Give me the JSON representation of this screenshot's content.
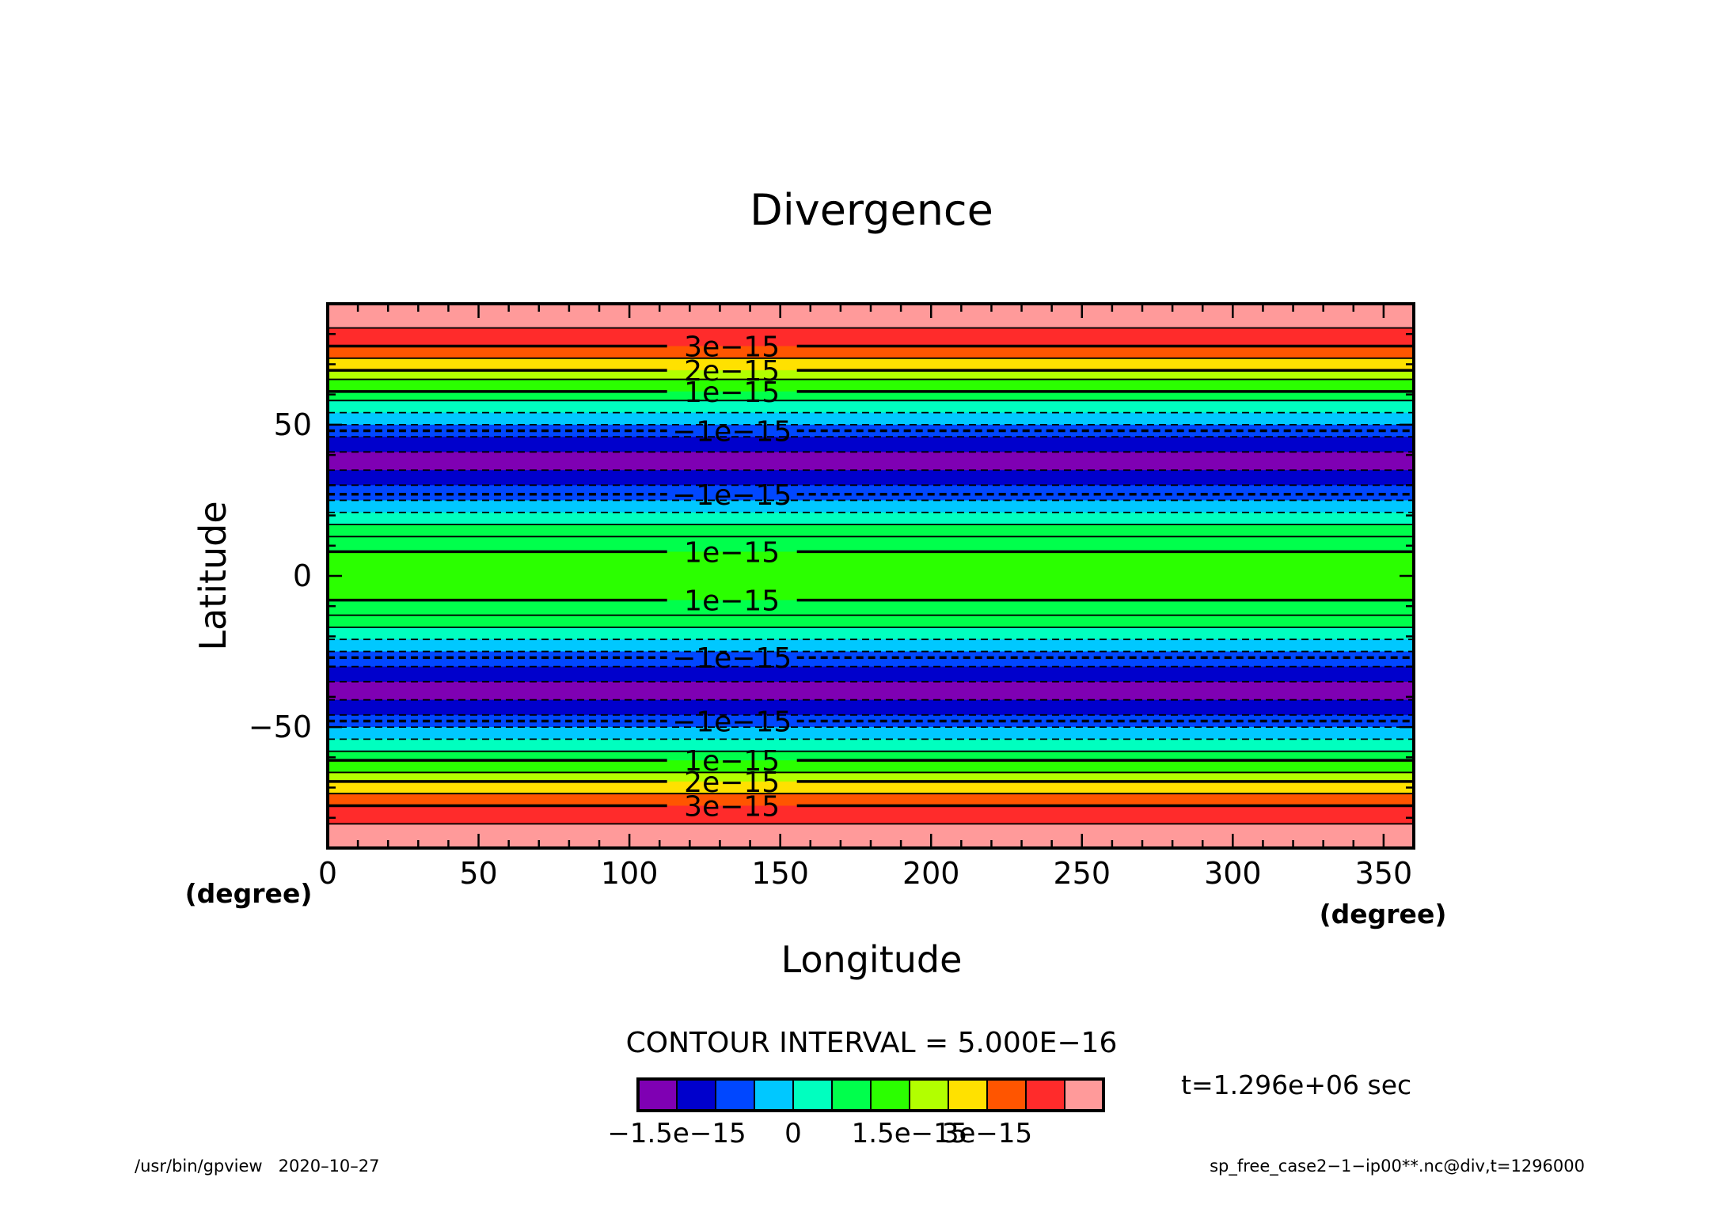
{
  "chart_data": {
    "type": "heatmap",
    "title": "Divergence",
    "xlabel": "Longitude",
    "ylabel": "Latitude",
    "x_unit_label": "(degree)",
    "y_unit_label": "(degree)",
    "xlim": [
      0,
      360
    ],
    "ylim": [
      -90,
      90
    ],
    "x_ticks": [
      0,
      50,
      100,
      150,
      200,
      250,
      300,
      350
    ],
    "y_ticks": [
      -50,
      0,
      50
    ],
    "x_tick_labels": [
      "0",
      "50",
      "100",
      "150",
      "200",
      "250",
      "300",
      "350"
    ],
    "y_tick_labels": [
      "−50",
      "0",
      "50"
    ],
    "contour_interval_text": "CONTOUR INTERVAL = 5.000E−16",
    "time_text": "t=1.296e+06 sec",
    "colorbar": {
      "colors": [
        "#7f00b3",
        "#0000cc",
        "#0047ff",
        "#00c8ff",
        "#00ffbf",
        "#00ff4c",
        "#2bff00",
        "#b2ff00",
        "#ffe100",
        "#ff5500",
        "#ff2b2b",
        "#ff9a9a"
      ],
      "tick_labels": [
        "−1.5e−15",
        "0",
        "1.5e−15",
        "3e−15"
      ]
    },
    "bands": [
      {
        "lat_from": 82,
        "lat_to": 90,
        "color": "#ff9a9a"
      },
      {
        "lat_from": 76,
        "lat_to": 82,
        "color": "#ff2b2b"
      },
      {
        "lat_from": 72,
        "lat_to": 76,
        "color": "#ff5500"
      },
      {
        "lat_from": 68,
        "lat_to": 72,
        "color": "#ffe100"
      },
      {
        "lat_from": 65,
        "lat_to": 68,
        "color": "#b2ff00"
      },
      {
        "lat_from": 61,
        "lat_to": 65,
        "color": "#2bff00"
      },
      {
        "lat_from": 58,
        "lat_to": 61,
        "color": "#00ff4c"
      },
      {
        "lat_from": 54,
        "lat_to": 58,
        "color": "#00ffbf"
      },
      {
        "lat_from": 50,
        "lat_to": 54,
        "color": "#00c8ff"
      },
      {
        "lat_from": 46,
        "lat_to": 50,
        "color": "#0047ff"
      },
      {
        "lat_from": 41,
        "lat_to": 46,
        "color": "#0000cc"
      },
      {
        "lat_from": 35,
        "lat_to": 41,
        "color": "#7f00b3"
      },
      {
        "lat_from": 30,
        "lat_to": 35,
        "color": "#0000cc"
      },
      {
        "lat_from": 25,
        "lat_to": 30,
        "color": "#0047ff"
      },
      {
        "lat_from": 21,
        "lat_to": 25,
        "color": "#00c8ff"
      },
      {
        "lat_from": 17,
        "lat_to": 21,
        "color": "#00ffbf"
      },
      {
        "lat_from": 8,
        "lat_to": 17,
        "color": "#00ff4c"
      },
      {
        "lat_from": -8,
        "lat_to": 8,
        "color": "#2bff00"
      },
      {
        "lat_from": -17,
        "lat_to": -8,
        "color": "#00ff4c"
      },
      {
        "lat_from": -21,
        "lat_to": -17,
        "color": "#00ffbf"
      },
      {
        "lat_from": -25,
        "lat_to": -21,
        "color": "#00c8ff"
      },
      {
        "lat_from": -30,
        "lat_to": -25,
        "color": "#0047ff"
      },
      {
        "lat_from": -35,
        "lat_to": -30,
        "color": "#0000cc"
      },
      {
        "lat_from": -41,
        "lat_to": -35,
        "color": "#7f00b3"
      },
      {
        "lat_from": -46,
        "lat_to": -41,
        "color": "#0000cc"
      },
      {
        "lat_from": -50,
        "lat_to": -46,
        "color": "#0047ff"
      },
      {
        "lat_from": -54,
        "lat_to": -50,
        "color": "#00c8ff"
      },
      {
        "lat_from": -58,
        "lat_to": -54,
        "color": "#00ffbf"
      },
      {
        "lat_from": -61,
        "lat_to": -58,
        "color": "#00ff4c"
      },
      {
        "lat_from": -65,
        "lat_to": -61,
        "color": "#2bff00"
      },
      {
        "lat_from": -68,
        "lat_to": -65,
        "color": "#b2ff00"
      },
      {
        "lat_from": -72,
        "lat_to": -68,
        "color": "#ffe100"
      },
      {
        "lat_from": -76,
        "lat_to": -72,
        "color": "#ff5500"
      },
      {
        "lat_from": -82,
        "lat_to": -76,
        "color": "#ff2b2b"
      },
      {
        "lat_from": -90,
        "lat_to": -82,
        "color": "#ff9a9a"
      }
    ],
    "contours": [
      {
        "lat": 82,
        "dashed": false,
        "thick": false
      },
      {
        "lat": 76,
        "dashed": false,
        "thick": true,
        "label": "3e−15"
      },
      {
        "lat": 72,
        "dashed": false,
        "thick": false
      },
      {
        "lat": 68,
        "dashed": false,
        "thick": true,
        "label": "2e−15"
      },
      {
        "lat": 65,
        "dashed": false,
        "thick": false
      },
      {
        "lat": 61,
        "dashed": false,
        "thick": true,
        "label": "1e−15"
      },
      {
        "lat": 58,
        "dashed": false,
        "thick": false
      },
      {
        "lat": 54,
        "dashed": true,
        "thick": false
      },
      {
        "lat": 50,
        "dashed": true,
        "thick": false
      },
      {
        "lat": 48,
        "dashed": true,
        "thick": true,
        "label": "−1e−15"
      },
      {
        "lat": 46,
        "dashed": true,
        "thick": false
      },
      {
        "lat": 41,
        "dashed": true,
        "thick": false
      },
      {
        "lat": 35,
        "dashed": true,
        "thick": false
      },
      {
        "lat": 30,
        "dashed": true,
        "thick": false
      },
      {
        "lat": 27,
        "dashed": true,
        "thick": true,
        "label": "−1e−15"
      },
      {
        "lat": 25,
        "dashed": true,
        "thick": false
      },
      {
        "lat": 21,
        "dashed": true,
        "thick": false
      },
      {
        "lat": 17,
        "dashed": false,
        "thick": false
      },
      {
        "lat": 13,
        "dashed": false,
        "thick": false
      },
      {
        "lat": 8,
        "dashed": false,
        "thick": true,
        "label": "1e−15"
      },
      {
        "lat": -8,
        "dashed": false,
        "thick": true,
        "label": "1e−15"
      },
      {
        "lat": -13,
        "dashed": false,
        "thick": false
      },
      {
        "lat": -17,
        "dashed": false,
        "thick": false
      },
      {
        "lat": -21,
        "dashed": true,
        "thick": false
      },
      {
        "lat": -25,
        "dashed": true,
        "thick": false
      },
      {
        "lat": -27,
        "dashed": true,
        "thick": true,
        "label": "−1e−15"
      },
      {
        "lat": -30,
        "dashed": true,
        "thick": false
      },
      {
        "lat": -35,
        "dashed": true,
        "thick": false
      },
      {
        "lat": -41,
        "dashed": true,
        "thick": false
      },
      {
        "lat": -46,
        "dashed": true,
        "thick": false
      },
      {
        "lat": -48,
        "dashed": true,
        "thick": true,
        "label": "−1e−15"
      },
      {
        "lat": -50,
        "dashed": true,
        "thick": false
      },
      {
        "lat": -54,
        "dashed": true,
        "thick": false
      },
      {
        "lat": -58,
        "dashed": false,
        "thick": false
      },
      {
        "lat": -61,
        "dashed": false,
        "thick": true,
        "label": "1e−15"
      },
      {
        "lat": -65,
        "dashed": false,
        "thick": false
      },
      {
        "lat": -68,
        "dashed": false,
        "thick": true,
        "label": "2e−15"
      },
      {
        "lat": -72,
        "dashed": false,
        "thick": false
      },
      {
        "lat": -76,
        "dashed": false,
        "thick": true,
        "label": "3e−15"
      },
      {
        "lat": -82,
        "dashed": false,
        "thick": false
      }
    ]
  },
  "footer": {
    "left": "/usr/bin/gpview   2020–10–27",
    "right": "sp_free_case2−1−ip00**.nc@div,t=1296000"
  }
}
